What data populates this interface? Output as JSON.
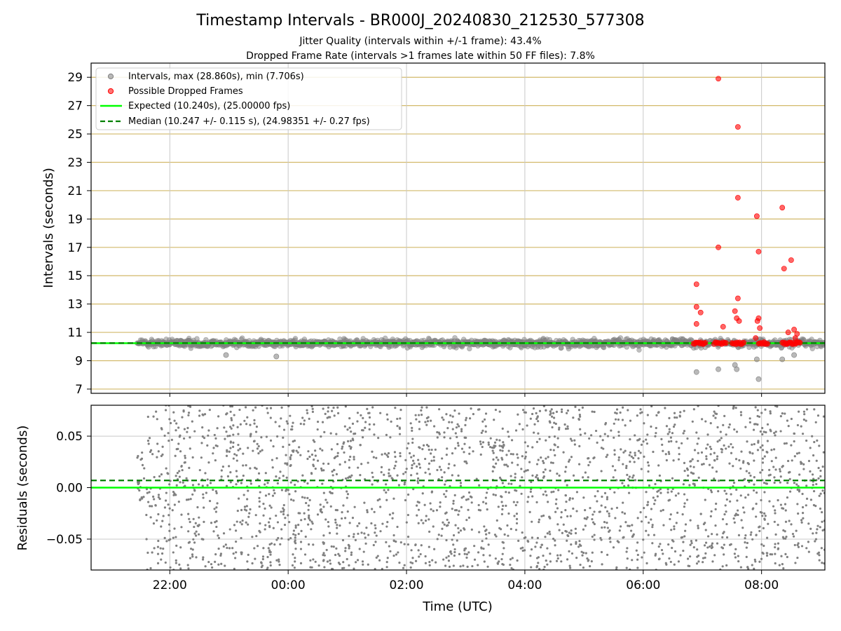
{
  "title": "Timestamp Intervals - BR000J_20240830_212530_577308",
  "subtitle_jitter": "Jitter Quality (intervals within +/-1 frame): 43.4%",
  "subtitle_dropped": "Dropped Frame Rate (intervals >1 frames late within 50 FF files): 7.8%",
  "colors": {
    "intervals": "#808080",
    "dropped": "#ff0000",
    "expected": "#00ff00",
    "median": "#007f00",
    "hgrid_top": "#d2b96a",
    "vgrid": "#c8c8c8"
  },
  "chart_data": [
    {
      "type": "scatter",
      "panel": "intervals",
      "ylabel": "Intervals (seconds)",
      "xlabel": "",
      "x_unit": "hours relative to 00:00 UTC (2024-08-31)",
      "xlim": [
        -3.33,
        9.07
      ],
      "ylim": [
        6.7,
        30.0
      ],
      "yticks": [
        7,
        9,
        11,
        13,
        15,
        17,
        19,
        21,
        23,
        25,
        27,
        29
      ],
      "grid": "horizontal lines at y ticks (gold), vertical lines at x ticks (gray)",
      "legend_position": "top-left",
      "legend": [
        "Intervals, max (28.860s), min (7.706s)",
        "Possible Dropped Frames",
        "Expected (10.240s), (25.00000 fps)",
        "Median (10.247 +/- 0.115 s), (24.98351 +/- 0.27 fps)"
      ],
      "series": [
        {
          "name": "Intervals, max (28.860s), min (7.706s)",
          "kind": "dense band",
          "x_range": [
            -2.55,
            9.07
          ],
          "y_center": 10.24,
          "y_spread": 0.5
        },
        {
          "name": "Intervals, max (28.860s), min (7.706s)",
          "kind": "outliers",
          "x": [
            6.9,
            7.27,
            7.55,
            7.58,
            7.92,
            7.95,
            8.35,
            8.55,
            -1.05,
            -0.2
          ],
          "y": [
            8.2,
            8.4,
            8.7,
            8.4,
            9.1,
            7.7,
            9.1,
            9.4,
            9.4,
            9.3
          ]
        },
        {
          "name": "Possible Dropped Frames",
          "x": [
            6.9,
            6.9,
            6.9,
            6.97,
            7.27,
            7.35,
            7.27,
            7.55,
            7.58,
            7.6,
            7.6,
            7.62,
            7.6,
            7.92,
            7.95,
            7.95,
            7.97,
            7.93,
            7.9,
            8.35,
            8.38,
            8.5,
            8.55,
            8.6,
            8.45,
            8.57
          ],
          "y": [
            14.4,
            12.8,
            11.6,
            12.4,
            28.9,
            11.4,
            17.0,
            12.5,
            12.0,
            25.5,
            20.5,
            11.8,
            13.4,
            19.2,
            16.7,
            12.0,
            11.3,
            11.8,
            10.6,
            19.8,
            15.5,
            16.1,
            11.2,
            10.9,
            11.0,
            10.6
          ],
          "baseline_cluster_y": 10.24,
          "baseline_cluster_x_ranges": [
            [
              6.85,
              7.05
            ],
            [
              7.2,
              7.4
            ],
            [
              7.5,
              7.7
            ],
            [
              7.95,
              8.1
            ],
            [
              8.35,
              8.65
            ]
          ]
        },
        {
          "name": "Expected (10.240s), (25.00000 fps)",
          "kind": "hline",
          "y": 10.24
        },
        {
          "name": "Median (10.247 +/- 0.115 s), (24.98351 +/- 0.27 fps)",
          "kind": "hline-dashed",
          "y": 10.247
        }
      ]
    },
    {
      "type": "scatter",
      "panel": "residuals",
      "ylabel": "Residuals (seconds)",
      "xlabel": "Time (UTC)",
      "xlim": [
        -3.33,
        9.07
      ],
      "ylim": [
        -0.08,
        0.08
      ],
      "yticks": [
        0.05,
        0.0,
        -0.05
      ],
      "ytick_labels": [
        "0.05",
        "0.00",
        "−0.05"
      ],
      "xticks": [
        -2,
        0,
        2,
        4,
        6,
        8
      ],
      "xtick_labels": [
        "22:00",
        "00:00",
        "02:00",
        "04:00",
        "06:00",
        "08:00"
      ],
      "grid": "horizontal and vertical gray grid",
      "series": [
        {
          "name": "",
          "kind": "random residual scatter",
          "x_range": [
            -2.55,
            9.07
          ],
          "y_range": [
            -0.08,
            0.08
          ]
        },
        {
          "name": "",
          "kind": "hline",
          "y": 0.0
        },
        {
          "name": "",
          "kind": "hline-dashed",
          "y": 0.007
        }
      ]
    }
  ]
}
